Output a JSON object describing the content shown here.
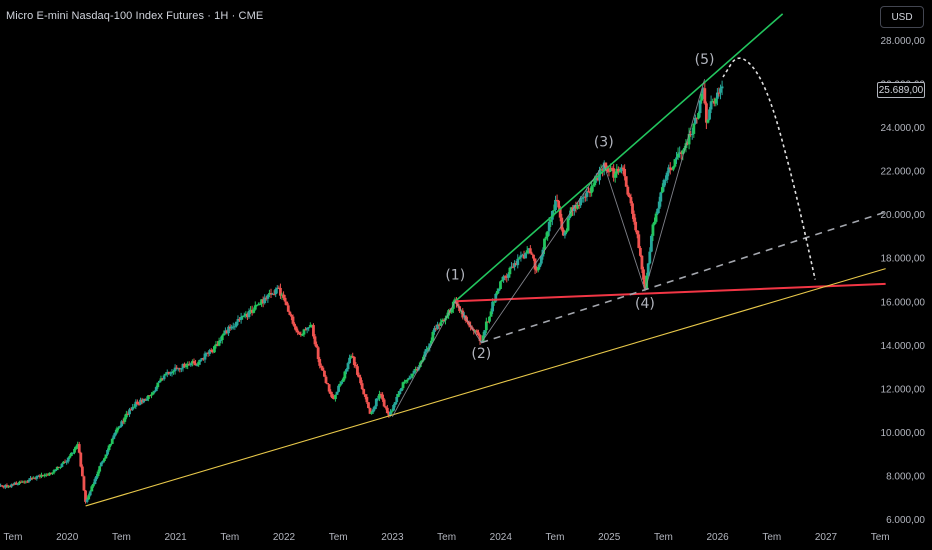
{
  "header": {
    "title": "Micro E-mini Nasdaq-100 Index Futures · 1H · CME",
    "currency": "USD"
  },
  "colors": {
    "background": "#000000",
    "candle_up": "#26a69a",
    "candle_up_bright": "#22c55e",
    "candle_down": "#ef5350",
    "channel_upper": "#22c55e",
    "wave4_support": "#f23645",
    "long_trendline": "#e8c84a",
    "wave_path": "#9598a1",
    "projection": "#e0e0e0",
    "axis_text": "#b2b5be"
  },
  "chart_data": {
    "type": "candlestick",
    "ylim": [
      6000,
      28700
    ],
    "y_ticks": [
      {
        "value": 6000,
        "label": "6.000,00"
      },
      {
        "value": 8000,
        "label": "8.000,00"
      },
      {
        "value": 10000,
        "label": "10.000,00"
      },
      {
        "value": 12000,
        "label": "12.000,00"
      },
      {
        "value": 14000,
        "label": "14.000,00"
      },
      {
        "value": 16000,
        "label": "16.000,00"
      },
      {
        "value": 18000,
        "label": "18.000,00"
      },
      {
        "value": 20000,
        "label": "20.000,00"
      },
      {
        "value": 22000,
        "label": "22.000,00"
      },
      {
        "value": 24000,
        "label": "24.000,00"
      },
      {
        "value": 26000,
        "label": "26.000,00"
      },
      {
        "value": 28000,
        "label": "28.000,00"
      }
    ],
    "x_ticks": [
      {
        "value": 2019.5,
        "label": "Tem"
      },
      {
        "value": 2020,
        "label": "2020"
      },
      {
        "value": 2020.5,
        "label": "Tem"
      },
      {
        "value": 2021,
        "label": "2021"
      },
      {
        "value": 2021.5,
        "label": "Tem"
      },
      {
        "value": 2022,
        "label": "2022"
      },
      {
        "value": 2022.5,
        "label": "Tem"
      },
      {
        "value": 2023,
        "label": "2023"
      },
      {
        "value": 2023.5,
        "label": "Tem"
      },
      {
        "value": 2024,
        "label": "2024"
      },
      {
        "value": 2024.5,
        "label": "Tem"
      },
      {
        "value": 2025,
        "label": "2025"
      },
      {
        "value": 2025.5,
        "label": "Tem"
      },
      {
        "value": 2026,
        "label": "2026"
      },
      {
        "value": 2026.5,
        "label": "Tem"
      },
      {
        "value": 2027,
        "label": "2027"
      },
      {
        "value": 2027.5,
        "label": "Tem"
      }
    ],
    "price_path": [
      [
        2019.27,
        7800
      ],
      [
        2019.4,
        7450
      ],
      [
        2019.55,
        7650
      ],
      [
        2019.7,
        7900
      ],
      [
        2019.85,
        8100
      ],
      [
        2020.0,
        8700
      ],
      [
        2020.1,
        9500
      ],
      [
        2020.17,
        6700
      ],
      [
        2020.3,
        8400
      ],
      [
        2020.45,
        10000
      ],
      [
        2020.6,
        11200
      ],
      [
        2020.75,
        11600
      ],
      [
        2020.9,
        12600
      ],
      [
        2021.05,
        13000
      ],
      [
        2021.2,
        13200
      ],
      [
        2021.35,
        13800
      ],
      [
        2021.5,
        14800
      ],
      [
        2021.65,
        15300
      ],
      [
        2021.8,
        16000
      ],
      [
        2021.95,
        16600
      ],
      [
        2022.05,
        15400
      ],
      [
        2022.15,
        14400
      ],
      [
        2022.25,
        15000
      ],
      [
        2022.33,
        13100
      ],
      [
        2022.45,
        11500
      ],
      [
        2022.55,
        12500
      ],
      [
        2022.62,
        13600
      ],
      [
        2022.72,
        12000
      ],
      [
        2022.8,
        10800
      ],
      [
        2022.88,
        11800
      ],
      [
        2022.97,
        10700
      ],
      [
        2023.1,
        12200
      ],
      [
        2023.25,
        13000
      ],
      [
        2023.4,
        14800
      ],
      [
        2023.52,
        15500
      ],
      [
        2023.58,
        16000
      ],
      [
        2023.68,
        15100
      ],
      [
        2023.82,
        14200
      ],
      [
        2023.92,
        15800
      ],
      [
        2024.0,
        16900
      ],
      [
        2024.15,
        17800
      ],
      [
        2024.27,
        18400
      ],
      [
        2024.33,
        17300
      ],
      [
        2024.45,
        19700
      ],
      [
        2024.52,
        20700
      ],
      [
        2024.58,
        18900
      ],
      [
        2024.65,
        20200
      ],
      [
        2024.78,
        20800
      ],
      [
        2024.9,
        21700
      ],
      [
        2024.95,
        22300
      ],
      [
        2025.05,
        21800
      ],
      [
        2025.12,
        22100
      ],
      [
        2025.22,
        20000
      ],
      [
        2025.28,
        18300
      ],
      [
        2025.33,
        16600
      ],
      [
        2025.4,
        19300
      ],
      [
        2025.5,
        21600
      ],
      [
        2025.6,
        22400
      ],
      [
        2025.7,
        23100
      ],
      [
        2025.8,
        24300
      ],
      [
        2025.87,
        25700
      ],
      [
        2025.9,
        24200
      ],
      [
        2025.95,
        25200
      ],
      [
        2026.05,
        25689
      ]
    ],
    "last_price": {
      "value": 25689,
      "label": "25.689,00"
    },
    "lines": [
      {
        "name": "channel-upper",
        "from": [
          2023.58,
          16000
        ],
        "to": [
          2026.6,
          29200
        ]
      },
      {
        "name": "wave4-support",
        "from": [
          2023.58,
          16000
        ],
        "to": [
          2027.55,
          16800
        ]
      },
      {
        "name": "long-trendline",
        "from": [
          2020.17,
          6600
        ],
        "to": [
          2027.55,
          17500
        ]
      },
      {
        "name": "wave2-dashed",
        "from": [
          2023.82,
          14100
        ],
        "to": [
          2027.55,
          20100
        ]
      }
    ],
    "wave_path": [
      [
        2023.0,
        10700
      ],
      [
        2023.58,
        16000
      ],
      [
        2023.82,
        14100
      ],
      [
        2024.95,
        22300
      ],
      [
        2025.33,
        16500
      ],
      [
        2025.88,
        26200
      ]
    ],
    "projection_path": [
      [
        2026.05,
        26300
      ],
      [
        2026.2,
        27500
      ],
      [
        2026.45,
        26000
      ],
      [
        2026.7,
        21500
      ],
      [
        2026.9,
        17000
      ]
    ],
    "wave_labels": [
      {
        "label": "(1)",
        "x": 2023.58,
        "y": 17000
      },
      {
        "label": "(2)",
        "x": 2023.82,
        "y": 13400
      },
      {
        "label": "(3)",
        "x": 2024.95,
        "y": 23100
      },
      {
        "label": "(4)",
        "x": 2025.33,
        "y": 15700
      },
      {
        "label": "(5)",
        "x": 2025.88,
        "y": 26900
      }
    ]
  }
}
